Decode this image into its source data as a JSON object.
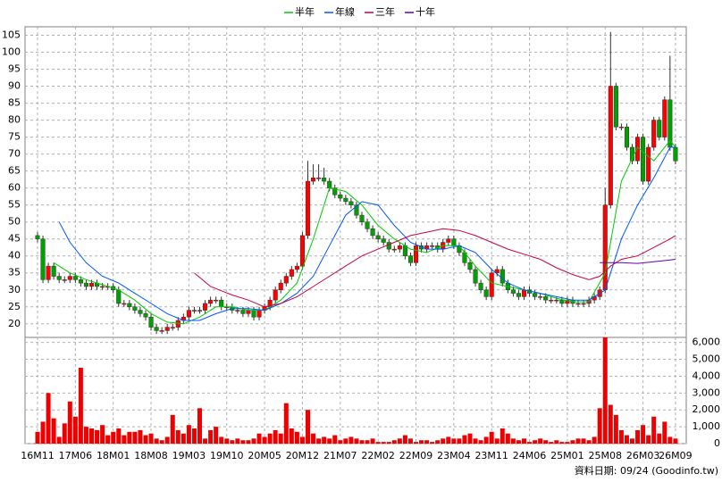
{
  "chart_data": [
    {
      "type": "candlestick",
      "categories": [
        "16M11",
        null,
        null,
        null,
        null,
        null,
        null,
        "17M06",
        null,
        null,
        null,
        null,
        null,
        null,
        "18M01",
        null,
        null,
        null,
        null,
        null,
        null,
        "18M08",
        null,
        null,
        null,
        null,
        null,
        null,
        "19M03",
        null,
        null,
        null,
        null,
        null,
        null,
        "19M10",
        null,
        null,
        null,
        null,
        null,
        null,
        "20M05",
        null,
        null,
        null,
        null,
        null,
        null,
        "20M12",
        null,
        null,
        null,
        null,
        null,
        null,
        "21M07",
        null,
        null,
        null,
        null,
        null,
        null,
        "22M02",
        null,
        null,
        null,
        null,
        null,
        null,
        "22M09",
        null,
        null,
        null,
        null,
        null,
        null,
        "23M04",
        null,
        null,
        null,
        null,
        null,
        null,
        "23M11",
        null,
        null,
        null,
        null,
        null,
        null,
        "24M06",
        null,
        null,
        null,
        null,
        null,
        null,
        "25M01",
        null,
        null,
        null,
        null,
        null,
        null,
        "25M08",
        null,
        null,
        null,
        null,
        null,
        null,
        "26M03",
        null,
        null,
        null,
        null,
        null,
        "26M09"
      ],
      "open": [
        46,
        45,
        33,
        37,
        34,
        33,
        33,
        34,
        33,
        32,
        31,
        32,
        31,
        31,
        31,
        30,
        26,
        26,
        25,
        24,
        23,
        22,
        19,
        18,
        18,
        19,
        19,
        21,
        22,
        24,
        24,
        24,
        26,
        27,
        27,
        25,
        25,
        24,
        24,
        23,
        24,
        22,
        24,
        25,
        27,
        30,
        32,
        34,
        36,
        37,
        46,
        62,
        63,
        63,
        62,
        60,
        58,
        57,
        56,
        55,
        52,
        50,
        48,
        46,
        45,
        44,
        42,
        42,
        43,
        40,
        38,
        43,
        42,
        43,
        43,
        42,
        44,
        45,
        43,
        41,
        38,
        36,
        32,
        30,
        28,
        35,
        36,
        32,
        30,
        29,
        28,
        30,
        29,
        28,
        28,
        27,
        27,
        27,
        26,
        27,
        26,
        26,
        26,
        27,
        28,
        30,
        55,
        90,
        78,
        78,
        72,
        68,
        75,
        62,
        72,
        80,
        75,
        86,
        72
      ],
      "high": [
        47,
        46,
        38,
        38,
        35,
        34,
        35,
        35,
        34,
        33,
        33,
        33,
        32,
        32,
        32,
        31,
        27,
        27,
        26,
        25,
        24,
        23,
        20,
        19,
        20,
        20,
        22,
        23,
        25,
        25,
        25,
        27,
        28,
        28,
        28,
        26,
        26,
        25,
        25,
        25,
        25,
        25,
        26,
        28,
        31,
        33,
        35,
        37,
        38,
        47,
        68,
        67,
        67,
        66,
        63,
        61,
        59,
        58,
        57,
        56,
        53,
        51,
        49,
        47,
        46,
        45,
        43,
        44,
        44,
        41,
        44,
        44,
        44,
        44,
        44,
        45,
        46,
        46,
        44,
        42,
        39,
        37,
        33,
        31,
        36,
        37,
        37,
        33,
        31,
        30,
        31,
        31,
        30,
        29,
        29,
        28,
        28,
        28,
        28,
        28,
        27,
        27,
        28,
        29,
        31,
        60,
        106,
        91,
        79,
        79,
        73,
        76,
        76,
        73,
        81,
        81,
        87,
        99,
        73
      ],
      "low": [
        44,
        32,
        32,
        33,
        32,
        32,
        32,
        32,
        31,
        30,
        30,
        30,
        30,
        30,
        29,
        25,
        25,
        24,
        23,
        22,
        21,
        18,
        17,
        17,
        17,
        18,
        18,
        20,
        21,
        23,
        23,
        23,
        25,
        26,
        24,
        24,
        23,
        23,
        22,
        22,
        21,
        21,
        23,
        24,
        26,
        29,
        31,
        33,
        35,
        36,
        45,
        61,
        62,
        61,
        59,
        57,
        56,
        55,
        54,
        51,
        49,
        47,
        45,
        44,
        43,
        41,
        41,
        41,
        39,
        37,
        37,
        41,
        41,
        42,
        41,
        41,
        43,
        42,
        40,
        37,
        35,
        31,
        29,
        27,
        27,
        34,
        31,
        29,
        28,
        27,
        27,
        28,
        27,
        27,
        26,
        26,
        26,
        25,
        25,
        25,
        25,
        25,
        25,
        26,
        27,
        29,
        54,
        77,
        77,
        71,
        67,
        67,
        61,
        61,
        71,
        74,
        74,
        71,
        67
      ],
      "close": [
        45,
        33,
        37,
        34,
        33,
        33,
        34,
        33,
        32,
        31,
        32,
        31,
        31,
        31,
        30,
        26,
        26,
        25,
        24,
        23,
        22,
        19,
        18,
        18,
        19,
        19,
        21,
        22,
        24,
        24,
        24,
        26,
        27,
        27,
        25,
        25,
        24,
        24,
        23,
        24,
        22,
        24,
        25,
        27,
        30,
        32,
        34,
        36,
        37,
        46,
        62,
        63,
        63,
        62,
        60,
        58,
        57,
        56,
        55,
        52,
        50,
        48,
        46,
        45,
        44,
        42,
        42,
        43,
        40,
        38,
        43,
        42,
        43,
        43,
        42,
        44,
        45,
        43,
        41,
        38,
        36,
        32,
        30,
        28,
        35,
        36,
        32,
        30,
        29,
        28,
        30,
        29,
        28,
        28,
        27,
        27,
        27,
        26,
        27,
        26,
        26,
        26,
        27,
        28,
        30,
        55,
        90,
        78,
        78,
        72,
        68,
        75,
        62,
        72,
        80,
        75,
        86,
        72,
        68
      ],
      "up_color": "#ff0000",
      "down_color": "#00a000",
      "ylim": [
        16,
        107.5
      ],
      "yticks": [
        20,
        25,
        30,
        35,
        40,
        45,
        50,
        55,
        60,
        65,
        70,
        75,
        80,
        85,
        90,
        95,
        100,
        105
      ],
      "grid": true,
      "legend": "top",
      "series": [
        {
          "name": "半年",
          "color": "#00cc00",
          "x": [
            3,
            6,
            9,
            12,
            15,
            18,
            21,
            24,
            27,
            30,
            33,
            36,
            39,
            42,
            45,
            48,
            51,
            54,
            57,
            60,
            63,
            66,
            69,
            72,
            75,
            78,
            81,
            84,
            87,
            90,
            93,
            96,
            99,
            102,
            105,
            108,
            111,
            114,
            117,
            118
          ],
          "values": [
            38,
            35,
            33,
            31.5,
            30,
            27,
            23,
            20.5,
            20,
            22,
            25,
            25,
            24,
            24,
            27,
            32,
            45,
            60,
            59,
            55,
            49,
            45,
            42,
            41,
            43,
            43,
            37,
            32,
            31,
            30,
            29,
            27.5,
            26.5,
            26.5,
            35,
            62,
            72,
            68,
            74,
            72
          ]
        },
        {
          "name": "年線",
          "color": "#0055ff",
          "x": [
            4,
            6,
            9,
            12,
            15,
            18,
            21,
            24,
            27,
            30,
            33,
            36,
            39,
            42,
            45,
            48,
            51,
            54,
            57,
            60,
            63,
            66,
            69,
            72,
            75,
            78,
            81,
            84,
            87,
            90,
            93,
            96,
            99,
            102,
            105,
            108,
            111,
            114,
            117,
            118
          ],
          "values": [
            50,
            44,
            38,
            34,
            32,
            29,
            26,
            23,
            21,
            21,
            23,
            24.5,
            24.5,
            24,
            26,
            29,
            34,
            43,
            52,
            56,
            55,
            49,
            44,
            42,
            42,
            43,
            41,
            36,
            32,
            30,
            29,
            28,
            27,
            27,
            30,
            45,
            55,
            63,
            72,
            72
          ]
        },
        {
          "name": "三年",
          "color": "#cc0044",
          "x": [
            29,
            32,
            36,
            39,
            42,
            45,
            48,
            51,
            54,
            57,
            60,
            63,
            66,
            69,
            72,
            75,
            78,
            81,
            84,
            87,
            90,
            93,
            96,
            99,
            102,
            104,
            106,
            108,
            111,
            114,
            117,
            118
          ],
          "values": [
            35,
            31,
            28.5,
            27,
            25,
            26,
            28,
            31,
            34,
            37,
            40,
            42,
            44,
            46,
            47,
            48,
            47.5,
            46,
            44,
            42,
            40.5,
            39,
            36.5,
            34.5,
            33,
            34,
            37,
            39,
            40,
            42.5,
            45,
            46
          ]
        },
        {
          "name": "十年",
          "color": "#6600aa",
          "x": [
            104,
            108,
            111,
            114,
            117,
            118
          ],
          "values": [
            38,
            38,
            37.8,
            38.3,
            38.8,
            39
          ]
        }
      ]
    },
    {
      "type": "bar",
      "values": [
        700,
        1300,
        3000,
        1500,
        400,
        1200,
        2500,
        1600,
        4500,
        1000,
        900,
        800,
        1100,
        500,
        700,
        900,
        500,
        700,
        700,
        800,
        500,
        600,
        300,
        200,
        400,
        1700,
        800,
        600,
        1100,
        900,
        2100,
        300,
        800,
        1000,
        400,
        300,
        200,
        300,
        200,
        200,
        300,
        600,
        400,
        600,
        800,
        600,
        2400,
        900,
        700,
        400,
        2000,
        600,
        300,
        400,
        300,
        500,
        200,
        300,
        400,
        300,
        200,
        200,
        300,
        100,
        100,
        100,
        200,
        300,
        500,
        300,
        100,
        200,
        200,
        100,
        200,
        300,
        400,
        300,
        300,
        500,
        600,
        300,
        200,
        400,
        700,
        300,
        900,
        600,
        300,
        200,
        300,
        100,
        200,
        300,
        200,
        100,
        200,
        100,
        100,
        200,
        300,
        300,
        200,
        400,
        2100,
        6300,
        2300,
        1700,
        800,
        500,
        300,
        800,
        1100,
        500,
        1600,
        600,
        1300,
        400,
        300
      ],
      "color": "#ee0000",
      "ylim": [
        0,
        6300
      ],
      "yticks": [
        0,
        {
          "value": 1000,
          "label": "1,000"
        },
        {
          "value": 2000,
          "label": "2,000"
        },
        {
          "value": 3000,
          "label": "3,000"
        },
        {
          "value": 4000,
          "label": "4,000"
        },
        {
          "value": 5000,
          "label": "5,000"
        },
        {
          "value": 6000,
          "label": "6,000"
        }
      ],
      "grid": true
    }
  ],
  "footer": "資料日期: 09/24 (Goodinfo.tw)"
}
